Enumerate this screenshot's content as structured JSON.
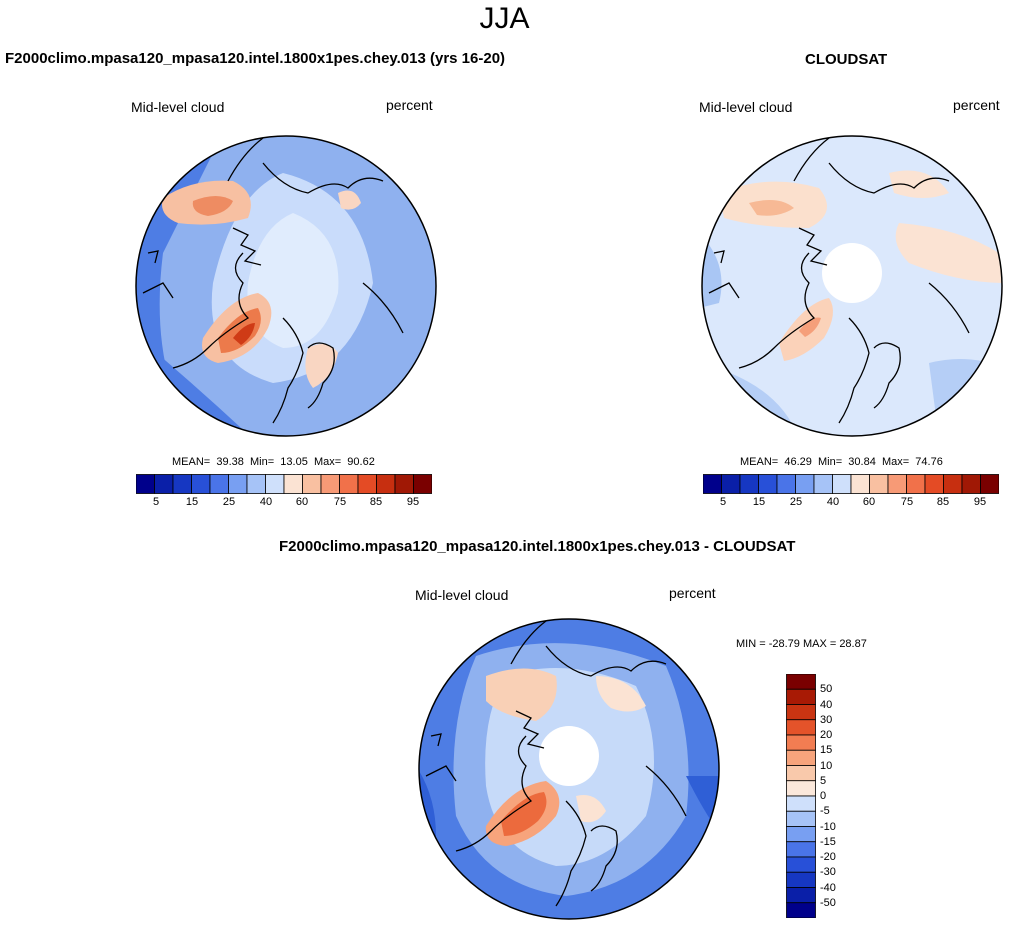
{
  "figure": {
    "title": "JJA",
    "variable": "Mid-level cloud",
    "units": "percent"
  },
  "panels": [
    {
      "id": "model",
      "title": "F2000climo.mpasa120_mpasa120.intel.1800x1pes.chey.013 (yrs 16-20)",
      "variable": "Mid-level cloud",
      "units": "percent",
      "stats": {
        "mean_label": "MEAN=",
        "mean": "39.38",
        "min_label": "Min=",
        "min": "13.05",
        "max_label": "Max=",
        "max": "90.62"
      }
    },
    {
      "id": "obs",
      "title": "CLOUDSAT",
      "variable": "Mid-level cloud",
      "units": "percent",
      "stats": {
        "mean_label": "MEAN=",
        "mean": "46.29",
        "min_label": "Min=",
        "min": "30.84",
        "max_label": "Max=",
        "max": "74.76"
      }
    },
    {
      "id": "diff",
      "title": "F2000climo.mpasa120_mpasa120.intel.1800x1pes.chey.013 - CLOUDSAT",
      "variable": "Mid-level cloud",
      "units": "percent",
      "stats_text": "MIN = -28.79 MAX =  28.87"
    }
  ],
  "colorbars": {
    "absolute": {
      "colors": [
        "#00008b",
        "#0a1fa8",
        "#1637c2",
        "#2850d8",
        "#4a74e8",
        "#789ff2",
        "#a6c3f7",
        "#cfe0fb",
        "#fbe3d3",
        "#f9c0a1",
        "#f79a76",
        "#f1714a",
        "#e44b25",
        "#c72f10",
        "#a01805",
        "#7a0000"
      ],
      "tick_labels": [
        "5",
        "15",
        "25",
        "40",
        "60",
        "75",
        "85",
        "95"
      ]
    },
    "difference": {
      "colors": [
        "#00008b",
        "#0a1fa8",
        "#1637c2",
        "#2850d8",
        "#4a74e8",
        "#789ff2",
        "#a6c3f7",
        "#cfe0fb",
        "#fbe8db",
        "#f9c9ab",
        "#f7a47c",
        "#f27d52",
        "#e4532a",
        "#c93412",
        "#a81a05",
        "#7a0000"
      ],
      "tick_labels": [
        "50",
        "40",
        "30",
        "20",
        "15",
        "10",
        "5",
        "0",
        "-5",
        "-10",
        "-15",
        "-20",
        "-30",
        "-40",
        "-50"
      ]
    }
  }
}
